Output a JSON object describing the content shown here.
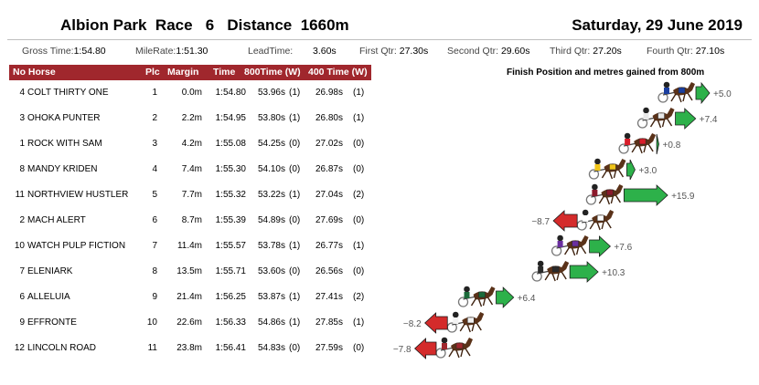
{
  "header": {
    "venue": "Albion Park",
    "race_label": "Race",
    "race_number": "6",
    "distance_label": "Distance",
    "distance": "1660m",
    "date": "Saturday, 29 June 2019"
  },
  "stats": [
    {
      "label": "Gross Time:",
      "value": "1:54.80"
    },
    {
      "label": "MileRate:",
      "value": "1:51.30"
    },
    {
      "label": "LeadTime:",
      "value": "3.60s"
    },
    {
      "label": "First Qtr:",
      "value": "27.30s"
    },
    {
      "label": "Second Qtr:",
      "value": "29.60s"
    },
    {
      "label": "Third Qtr:",
      "value": "27.20s"
    },
    {
      "label": "Fourth Qtr:",
      "value": "27.10s"
    }
  ],
  "columns": {
    "no_horse": "No Horse",
    "plc": "Plc",
    "margin": "Margin",
    "time": "Time",
    "t800": "800Time (W)",
    "t400": "400 Time (W)"
  },
  "rows": [
    {
      "no": "4",
      "horse": "COLT THIRTY ONE",
      "plc": "1",
      "margin": "0.0m",
      "time": "1:54.80",
      "t800": "53.96s",
      "w800": "(1)",
      "t400": "26.98s",
      "w400": "(1)"
    },
    {
      "no": "3",
      "horse": "OHOKA PUNTER",
      "plc": "2",
      "margin": "2.2m",
      "time": "1:54.95",
      "t800": "53.80s",
      "w800": "(1)",
      "t400": "26.80s",
      "w400": "(1)"
    },
    {
      "no": "1",
      "horse": "ROCK WITH SAM",
      "plc": "3",
      "margin": "4.2m",
      "time": "1:55.08",
      "t800": "54.25s",
      "w800": "(0)",
      "t400": "27.02s",
      "w400": "(0)"
    },
    {
      "no": "8",
      "horse": "MANDY KRIDEN",
      "plc": "4",
      "margin": "7.4m",
      "time": "1:55.30",
      "t800": "54.10s",
      "w800": "(0)",
      "t400": "26.87s",
      "w400": "(0)"
    },
    {
      "no": "11",
      "horse": "NORTHVIEW HUSTLER",
      "plc": "5",
      "margin": "7.7m",
      "time": "1:55.32",
      "t800": "53.22s",
      "w800": "(1)",
      "t400": "27.04s",
      "w400": "(2)"
    },
    {
      "no": "2",
      "horse": "MACH ALERT",
      "plc": "6",
      "margin": "8.7m",
      "time": "1:55.39",
      "t800": "54.89s",
      "w800": "(0)",
      "t400": "27.69s",
      "w400": "(0)"
    },
    {
      "no": "10",
      "horse": "WATCH PULP FICTION",
      "plc": "7",
      "margin": "11.4m",
      "time": "1:55.57",
      "t800": "53.78s",
      "w800": "(1)",
      "t400": "26.77s",
      "w400": "(1)"
    },
    {
      "no": "7",
      "horse": "ELENIARK",
      "plc": "8",
      "margin": "13.5m",
      "time": "1:55.71",
      "t800": "53.60s",
      "w800": "(0)",
      "t400": "26.56s",
      "w400": "(0)"
    },
    {
      "no": "6",
      "horse": "ALLELUIA",
      "plc": "9",
      "margin": "21.4m",
      "time": "1:56.25",
      "t800": "53.87s",
      "w800": "(1)",
      "t400": "27.41s",
      "w400": "(2)"
    },
    {
      "no": "9",
      "horse": "EFFRONTE",
      "plc": "10",
      "margin": "22.6m",
      "time": "1:56.33",
      "t800": "54.86s",
      "w800": "(1)",
      "t400": "27.85s",
      "w400": "(1)"
    },
    {
      "no": "12",
      "horse": "LINCOLN ROAD",
      "plc": "11",
      "margin": "23.8m",
      "time": "1:56.41",
      "t800": "54.83s",
      "w800": "(0)",
      "t400": "27.59s",
      "w400": "(0)"
    }
  ],
  "chart_data": {
    "type": "bar",
    "title": "Finish Position and metres gained from 800m",
    "categories": [
      "COLT THIRTY ONE",
      "OHOKA PUNTER",
      "ROCK WITH SAM",
      "MANDY KRIDEN",
      "NORTHVIEW HUSTLER",
      "MACH ALERT",
      "WATCH PULP FICTION",
      "ELENIARK",
      "ALLELUIA",
      "EFFRONTE",
      "LINCOLN ROAD"
    ],
    "margins": [
      0.0,
      2.2,
      4.2,
      7.4,
      7.7,
      8.7,
      11.4,
      13.5,
      21.4,
      22.6,
      23.8
    ],
    "values": [
      5.0,
      7.4,
      0.8,
      3.0,
      15.9,
      -8.7,
      7.6,
      10.3,
      6.4,
      -8.2,
      -7.8
    ],
    "value_labels": [
      "+5.0",
      "+7.4",
      "+0.8",
      "+3.0",
      "+15.9",
      "−8.7",
      "+7.6",
      "+10.3",
      "+6.4",
      "−8.2",
      "−7.8"
    ],
    "horse_numbers": [
      "4",
      "3",
      "1",
      "8",
      "11",
      "2",
      "10",
      "7",
      "6",
      "9",
      "12"
    ],
    "colors": {
      "gain": "#2db14a",
      "loss": "#d42b2b",
      "saddlecloths": [
        "#1b3fa0",
        "#e8e8e8",
        "#d81e2a",
        "#f0c419",
        "#8a1a2b",
        "#ffffff",
        "#6a2fa0",
        "#2a2a2a",
        "#1b6a3a",
        "#f2f2f2",
        "#a0272d"
      ]
    }
  }
}
